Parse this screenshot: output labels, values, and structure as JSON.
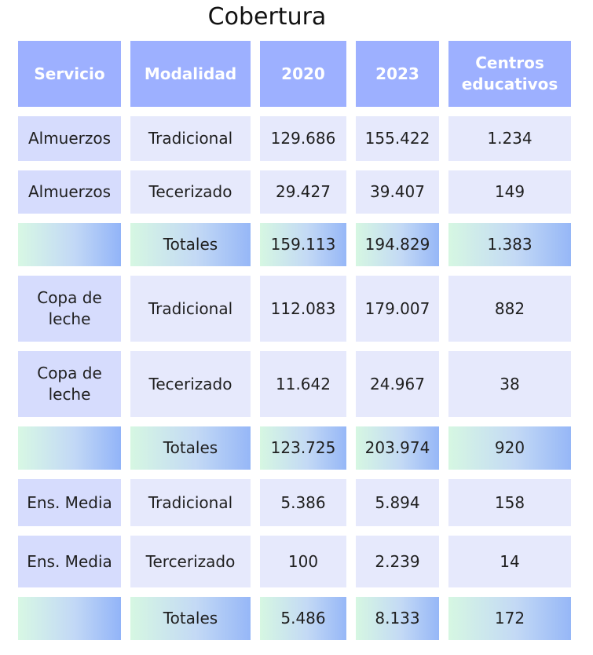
{
  "title": "Cobertura",
  "headers": [
    "Servicio",
    "Modalidad",
    "2020",
    "2023",
    "Centros educativos"
  ],
  "rows": [
    {
      "type": "data",
      "cells": [
        "Almuerzos",
        "Tradicional",
        "129.686",
        "155.422",
        "1.234"
      ]
    },
    {
      "type": "data",
      "cells": [
        "Almuerzos",
        "Tecerizado",
        "29.427",
        "39.407",
        "149"
      ]
    },
    {
      "type": "total",
      "cells": [
        "",
        "Totales",
        "159.113",
        "194.829",
        "1.383"
      ]
    },
    {
      "type": "data",
      "cells": [
        "Copa de leche",
        "Tradicional",
        "112.083",
        "179.007",
        "882"
      ]
    },
    {
      "type": "data",
      "cells": [
        "Copa de leche",
        "Tecerizado",
        "11.642",
        "24.967",
        "38"
      ]
    },
    {
      "type": "total",
      "cells": [
        "",
        "Totales",
        "123.725",
        "203.974",
        "920"
      ]
    },
    {
      "type": "data",
      "cells": [
        "Ens. Media",
        "Tradicional",
        "5.386",
        "5.894",
        "158"
      ]
    },
    {
      "type": "data",
      "cells": [
        "Ens. Media",
        "Tercerizado",
        "100",
        "2.239",
        "14"
      ]
    },
    {
      "type": "total",
      "cells": [
        "",
        "Totales",
        "5.486",
        "8.133",
        "172"
      ]
    }
  ]
}
